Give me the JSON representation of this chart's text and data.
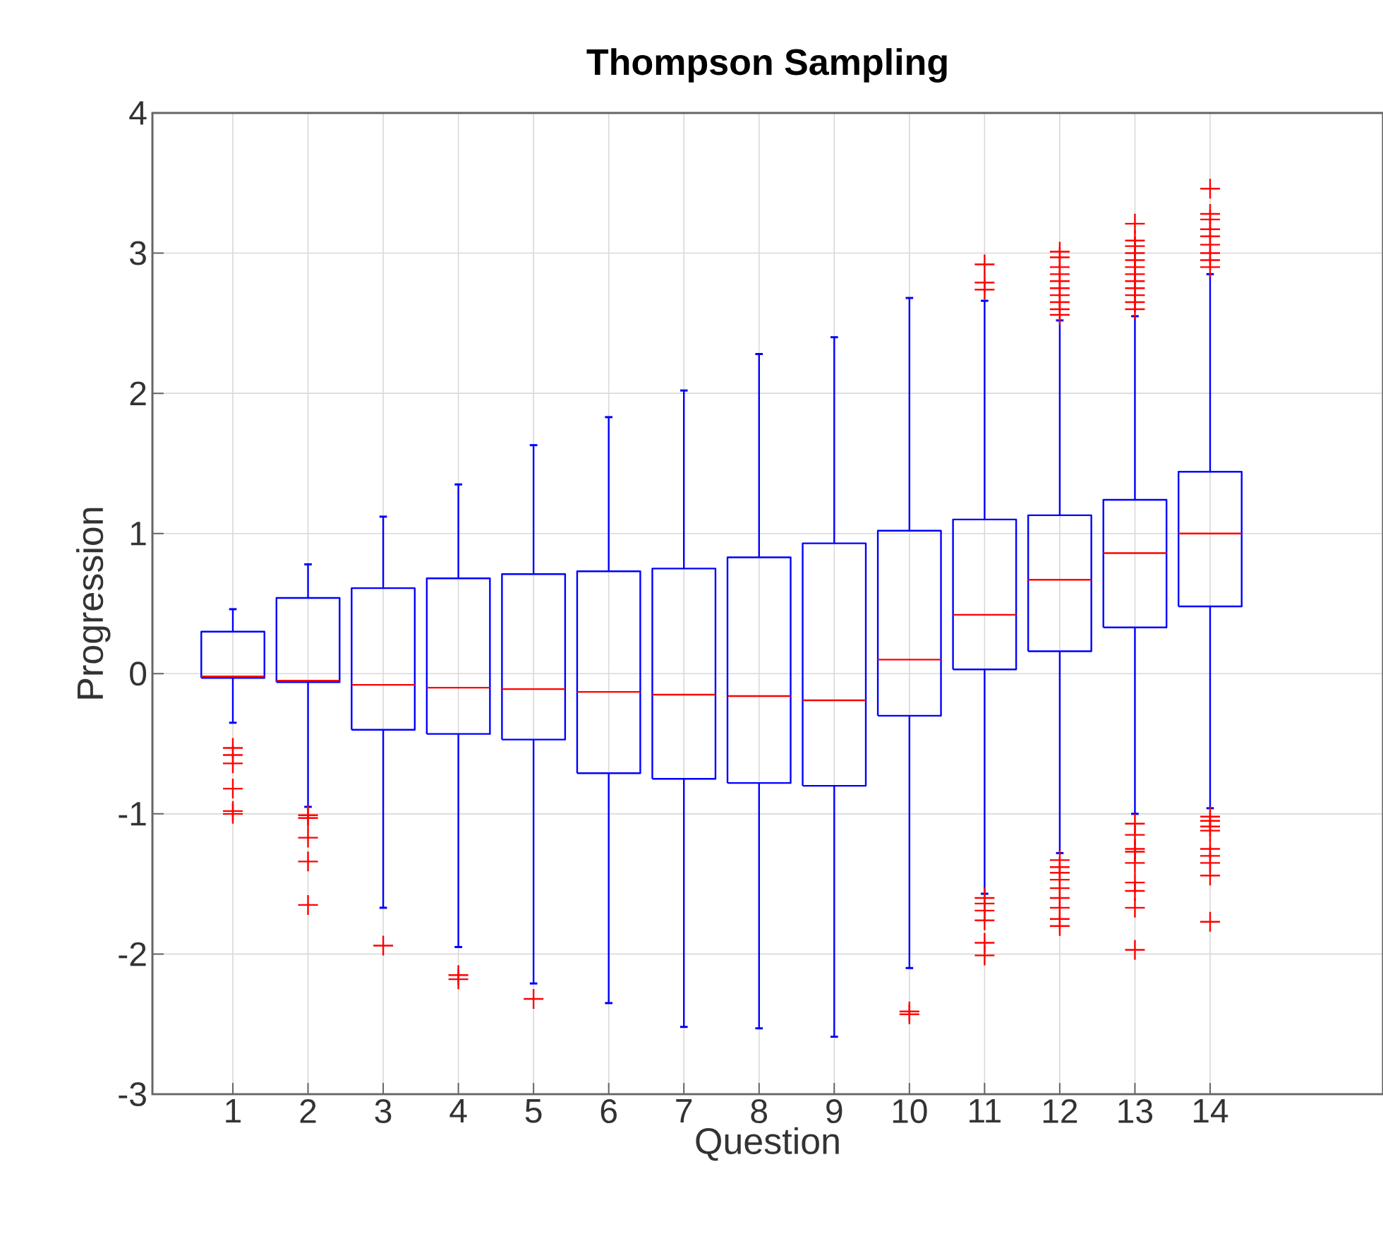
{
  "chart_data": {
    "type": "box",
    "title": "**Thompson Sampling**",
    "xlabel": "Question",
    "ylabel": "Progression",
    "categories": [
      "1",
      "2",
      "3",
      "4",
      "5",
      "6",
      "7",
      "8",
      "9",
      "10",
      "11",
      "12",
      "13",
      "14"
    ],
    "ylim": [
      -3,
      4
    ],
    "yticks": [
      -3,
      -2,
      -1,
      0,
      1,
      2,
      3,
      4
    ],
    "grid": true,
    "marker": "cross",
    "series": [
      {
        "color": "#0000ff",
        "boxes": [
          {
            "low": -0.35,
            "q1": -0.03,
            "median": -0.02,
            "q3": 0.3,
            "high": 0.46,
            "outliers": [
              -0.53,
              -0.58,
              -0.64,
              -0.82,
              -0.98,
              -1.0
            ]
          },
          {
            "low": -0.95,
            "q1": -0.06,
            "median": -0.05,
            "q3": 0.54,
            "high": 0.78,
            "outliers": [
              -1.01,
              -1.03,
              -1.17,
              -1.34,
              -1.65
            ]
          },
          {
            "low": -1.67,
            "q1": -0.4,
            "median": -0.08,
            "q3": 0.61,
            "high": 1.12,
            "outliers": [
              -1.94
            ]
          },
          {
            "low": -1.95,
            "q1": -0.43,
            "median": -0.1,
            "q3": 0.68,
            "high": 1.35,
            "outliers": [
              -2.15,
              -2.18
            ]
          },
          {
            "low": -2.21,
            "q1": -0.47,
            "median": -0.11,
            "q3": 0.71,
            "high": 1.63,
            "outliers": [
              -2.32
            ]
          },
          {
            "low": -2.35,
            "q1": -0.71,
            "median": -0.13,
            "q3": 0.73,
            "high": 1.83
          },
          {
            "low": -2.52,
            "q1": -0.75,
            "median": -0.15,
            "q3": 0.75,
            "high": 2.02
          },
          {
            "low": -2.53,
            "q1": -0.78,
            "median": -0.16,
            "q3": 0.83,
            "high": 2.28
          },
          {
            "low": -2.59,
            "q1": -0.8,
            "median": -0.19,
            "q3": 0.93,
            "high": 2.4
          },
          {
            "low": -2.1,
            "q1": -0.3,
            "median": 0.1,
            "q3": 1.02,
            "high": 2.68,
            "outliers": [
              -2.41,
              -2.43
            ]
          },
          {
            "low": -1.57,
            "q1": 0.03,
            "median": 0.42,
            "q3": 1.1,
            "high": 2.66,
            "outliers": [
              2.92,
              2.79,
              2.74,
              -1.6,
              -1.64,
              -1.69,
              -1.76,
              -1.92,
              -2.01
            ]
          },
          {
            "low": -1.28,
            "q1": 0.16,
            "median": 0.67,
            "q3": 1.13,
            "high": 2.52,
            "outliers": [
              3.01,
              2.97,
              2.9,
              2.85,
              2.8,
              2.75,
              2.7,
              2.65,
              2.6,
              2.56,
              -1.33,
              -1.38,
              -1.42,
              -1.47,
              -1.53,
              -1.6,
              -1.67,
              -1.75,
              -1.8
            ]
          },
          {
            "low": -1.0,
            "q1": 0.33,
            "median": 0.86,
            "q3": 1.24,
            "high": 2.55,
            "outliers": [
              3.21,
              3.09,
              3.05,
              3.0,
              2.95,
              2.9,
              2.85,
              2.8,
              2.75,
              2.7,
              2.65,
              2.6,
              -1.07,
              -1.15,
              -1.25,
              -1.27,
              -1.35,
              -1.49,
              -1.55,
              -1.67,
              -1.97
            ]
          },
          {
            "low": -0.96,
            "q1": 0.48,
            "median": 1.0,
            "q3": 1.44,
            "high": 2.85,
            "outliers": [
              3.46,
              3.28,
              3.24,
              3.17,
              3.12,
              3.06,
              3.0,
              2.95,
              2.9,
              -1.02,
              -1.05,
              -1.09,
              -1.12,
              -1.25,
              -1.3,
              -1.35,
              -1.44,
              -1.77
            ]
          }
        ]
      }
    ]
  }
}
